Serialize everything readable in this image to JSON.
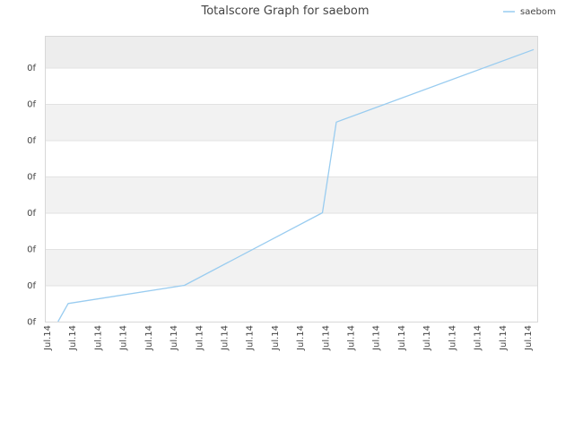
{
  "chart_data": {
    "type": "line",
    "title": "Totalscore Graph for saebom",
    "legend": {
      "position": "top-right"
    },
    "xlabel": "",
    "ylabel": "",
    "grid": true,
    "x_tick_labels": [
      "Jul.14",
      "Jul.14",
      "Jul.14",
      "Jul.14",
      "Jul.14",
      "Jul.14",
      "Jul.14",
      "Jul.14",
      "Jul.14",
      "Jul.14",
      "Jul.14",
      "Jul.14",
      "Jul.14",
      "Jul.14",
      "Jul.14",
      "Jul.14",
      "Jul.14",
      "Jul.14",
      "Jul.14",
      "Jul.14"
    ],
    "y_tick_labels": [
      "0f",
      "0f",
      "0f",
      "0f",
      "0f",
      "0f",
      "0f",
      "0f"
    ],
    "ylim": [
      0,
      8
    ],
    "xlim": [
      0,
      19
    ],
    "series": [
      {
        "name": "saebom",
        "color": "#99ccf0",
        "x": [
          0.45,
          0.85,
          5.45,
          10.9,
          11.45,
          19.25
        ],
        "y": [
          0.0,
          0.5,
          1.0,
          3.0,
          5.5,
          7.5
        ]
      }
    ]
  }
}
